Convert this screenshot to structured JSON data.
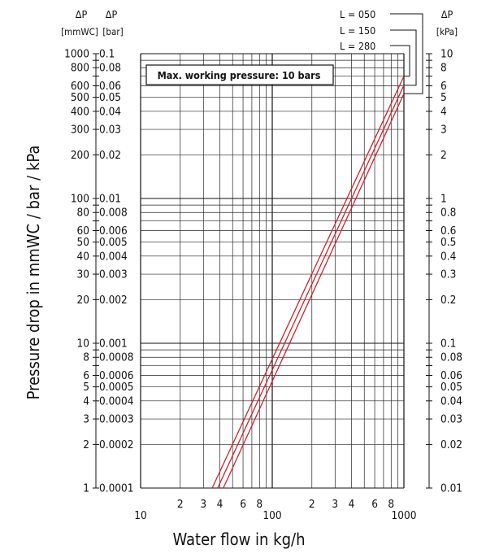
{
  "chart_data": {
    "type": "line",
    "x_scale": "log",
    "y_scale": "log",
    "xlim": [
      10,
      1000
    ],
    "ylim_mmWC": [
      1,
      1000
    ],
    "ylim_bar": [
      0.0001,
      0.1
    ],
    "ylim_kPa": [
      0.01,
      10
    ],
    "grid": true,
    "xlabel": "Water flow in kg/h",
    "ylabel": "Pressure drop in mmWC / bar / kPa",
    "left_axis_1": {
      "symbol": "ΔP",
      "unit": "[mmWC]"
    },
    "left_axis_2": {
      "symbol": "ΔP",
      "unit": "[bar]"
    },
    "right_axis": {
      "symbol": "ΔP",
      "unit": "[kPa]"
    },
    "annotation": "Max. working pressure: 10 bars",
    "x_ticks": [
      {
        "v": 10,
        "t": "10"
      },
      {
        "v": 20,
        "t": "2"
      },
      {
        "v": 30,
        "t": "3"
      },
      {
        "v": 40,
        "t": "4"
      },
      {
        "v": 60,
        "t": "6"
      },
      {
        "v": 80,
        "t": "8"
      },
      {
        "v": 100,
        "t": "100"
      },
      {
        "v": 200,
        "t": "2"
      },
      {
        "v": 300,
        "t": "3"
      },
      {
        "v": 400,
        "t": "4"
      },
      {
        "v": 600,
        "t": "6"
      },
      {
        "v": 800,
        "t": "8"
      },
      {
        "v": 1000,
        "t": "1000"
      }
    ],
    "y_ticks_mmWC": [
      {
        "v": 1000,
        "t": "1000"
      },
      {
        "v": 800,
        "t": "800"
      },
      {
        "v": 600,
        "t": "600"
      },
      {
        "v": 500,
        "t": "500"
      },
      {
        "v": 400,
        "t": "400"
      },
      {
        "v": 300,
        "t": "300"
      },
      {
        "v": 200,
        "t": "200"
      },
      {
        "v": 100,
        "t": "100"
      },
      {
        "v": 80,
        "t": "80"
      },
      {
        "v": 60,
        "t": "60"
      },
      {
        "v": 50,
        "t": "50"
      },
      {
        "v": 40,
        "t": "40"
      },
      {
        "v": 30,
        "t": "30"
      },
      {
        "v": 20,
        "t": "20"
      },
      {
        "v": 10,
        "t": "10"
      },
      {
        "v": 8,
        "t": "8"
      },
      {
        "v": 6,
        "t": "6"
      },
      {
        "v": 5,
        "t": "5"
      },
      {
        "v": 4,
        "t": "4"
      },
      {
        "v": 3,
        "t": "3"
      },
      {
        "v": 2,
        "t": "2"
      },
      {
        "v": 1,
        "t": "1"
      }
    ],
    "y_ticks_bar": [
      {
        "v": 0.1,
        "t": "0.1"
      },
      {
        "v": 0.08,
        "t": "0.08"
      },
      {
        "v": 0.06,
        "t": "0.06"
      },
      {
        "v": 0.05,
        "t": "0.05"
      },
      {
        "v": 0.04,
        "t": "0.04"
      },
      {
        "v": 0.03,
        "t": "0.03"
      },
      {
        "v": 0.02,
        "t": "0.02"
      },
      {
        "v": 0.01,
        "t": "0.01"
      },
      {
        "v": 0.008,
        "t": "0.008"
      },
      {
        "v": 0.006,
        "t": "0.006"
      },
      {
        "v": 0.005,
        "t": "0.005"
      },
      {
        "v": 0.004,
        "t": "0.004"
      },
      {
        "v": 0.003,
        "t": "0.003"
      },
      {
        "v": 0.002,
        "t": "0.002"
      },
      {
        "v": 0.001,
        "t": "0.001"
      },
      {
        "v": 0.0008,
        "t": "0.0008"
      },
      {
        "v": 0.0006,
        "t": "0.0006"
      },
      {
        "v": 0.0005,
        "t": "0.0005"
      },
      {
        "v": 0.0004,
        "t": "0.0004"
      },
      {
        "v": 0.0003,
        "t": "0.0003"
      },
      {
        "v": 0.0002,
        "t": "0.0002"
      },
      {
        "v": 0.0001,
        "t": "0.0001"
      }
    ],
    "y_ticks_kPa": [
      {
        "v": 10,
        "t": "10"
      },
      {
        "v": 8,
        "t": "8"
      },
      {
        "v": 6,
        "t": "6"
      },
      {
        "v": 5,
        "t": "5"
      },
      {
        "v": 4,
        "t": "4"
      },
      {
        "v": 3,
        "t": "3"
      },
      {
        "v": 2,
        "t": "2"
      },
      {
        "v": 1,
        "t": "1"
      },
      {
        "v": 0.8,
        "t": "0.8"
      },
      {
        "v": 0.6,
        "t": "0.6"
      },
      {
        "v": 0.5,
        "t": "0.5"
      },
      {
        "v": 0.4,
        "t": "0.4"
      },
      {
        "v": 0.3,
        "t": "0.3"
      },
      {
        "v": 0.2,
        "t": "0.2"
      },
      {
        "v": 0.1,
        "t": "0.1"
      },
      {
        "v": 0.08,
        "t": "0.08"
      },
      {
        "v": 0.06,
        "t": "0.06"
      },
      {
        "v": 0.05,
        "t": "0.05"
      },
      {
        "v": 0.04,
        "t": "0.04"
      },
      {
        "v": 0.03,
        "t": "0.03"
      },
      {
        "v": 0.02,
        "t": "0.02"
      },
      {
        "v": 0.01,
        "t": "0.01"
      }
    ],
    "series": [
      {
        "name": "L = 050",
        "x": [
          42.5,
          1000
        ],
        "y_mmWC": [
          1,
          530
        ]
      },
      {
        "name": "L = 150",
        "x": [
          38.5,
          1000
        ],
        "y_mmWC": [
          1,
          605
        ]
      },
      {
        "name": "L = 280",
        "x": [
          35,
          1000
        ],
        "y_mmWC": [
          1,
          700
        ]
      }
    ],
    "colors": {
      "series": "#d0202a",
      "grid": "#111111",
      "text": "#111111"
    }
  }
}
